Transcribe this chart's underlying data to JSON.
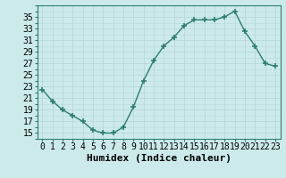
{
  "x": [
    0,
    1,
    2,
    3,
    4,
    5,
    6,
    7,
    8,
    9,
    10,
    11,
    12,
    13,
    14,
    15,
    16,
    17,
    18,
    19,
    20,
    21,
    22,
    23
  ],
  "y": [
    22.5,
    20.5,
    19.0,
    18.0,
    17.0,
    15.5,
    15.0,
    15.0,
    16.0,
    19.5,
    24.0,
    27.5,
    30.0,
    31.5,
    33.5,
    34.5,
    34.5,
    34.5,
    35.0,
    36.0,
    32.5,
    30.0,
    27.0,
    26.5
  ],
  "line_color": "#2e7d6e",
  "marker": "+",
  "marker_size": 5,
  "bg_color": "#cceaea",
  "grid_color": "#b8d8d8",
  "xlabel": "Humidex (Indice chaleur)",
  "ylabel_ticks": [
    15,
    17,
    19,
    21,
    23,
    25,
    27,
    29,
    31,
    33,
    35
  ],
  "ylim": [
    14.0,
    37.0
  ],
  "xlim": [
    -0.5,
    23.5
  ],
  "xlabel_fontsize": 8,
  "tick_fontsize": 7
}
